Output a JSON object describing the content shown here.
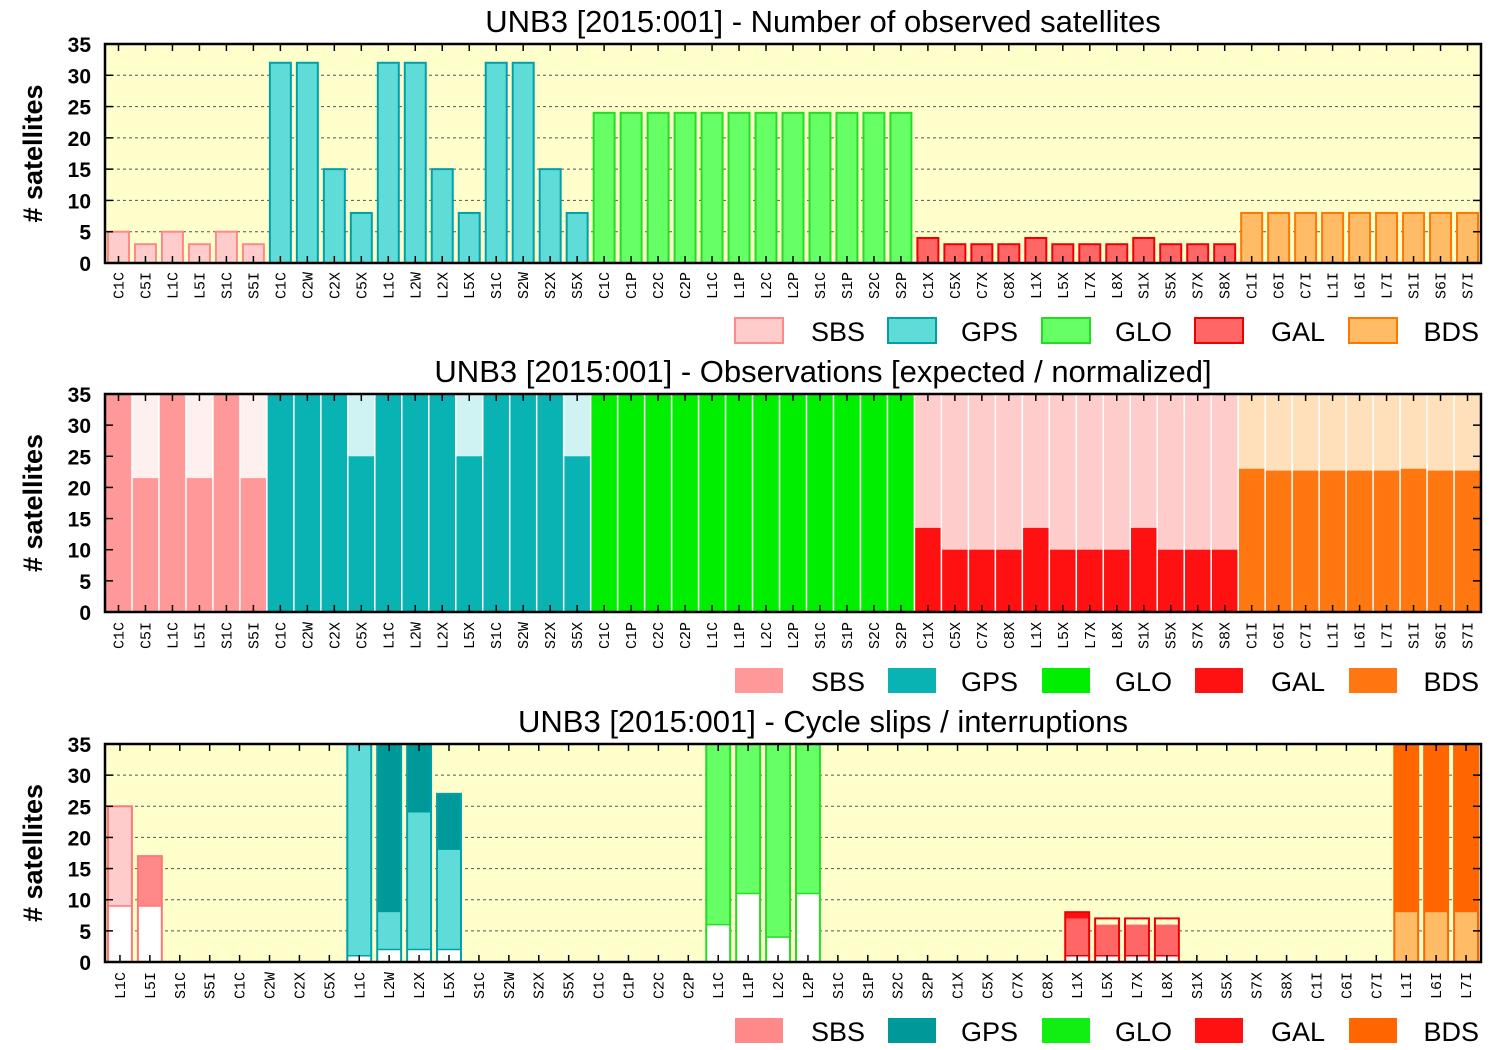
{
  "chart_data": [
    {
      "type": "bar",
      "title": "UNB3 [2015:001] - Number of observed satellites",
      "ylabel": "# satellites",
      "ylim": [
        0,
        35
      ],
      "yticks": [
        0,
        5,
        10,
        15,
        20,
        25,
        30,
        35
      ],
      "grid": true,
      "legend_placement": "bottom-right",
      "categories": [
        "C1C",
        "C5I",
        "L1C",
        "L5I",
        "S1C",
        "S5I",
        "C1C",
        "C2W",
        "C2X",
        "C5X",
        "L1C",
        "L2W",
        "L2X",
        "L5X",
        "S1C",
        "S2W",
        "S2X",
        "S5X",
        "C1C",
        "C1P",
        "C2C",
        "C2P",
        "L1C",
        "L1P",
        "L2C",
        "L2P",
        "S1C",
        "S1P",
        "S2C",
        "S2P",
        "C1X",
        "C5X",
        "C7X",
        "C8X",
        "L1X",
        "L5X",
        "L7X",
        "L8X",
        "S1X",
        "S5X",
        "S7X",
        "S8X",
        "C1I",
        "C6I",
        "C7I",
        "L1I",
        "L6I",
        "L7I",
        "S1I",
        "S6I",
        "S7I"
      ],
      "groups": [
        "SBS",
        "SBS",
        "SBS",
        "SBS",
        "SBS",
        "SBS",
        "GPS",
        "GPS",
        "GPS",
        "GPS",
        "GPS",
        "GPS",
        "GPS",
        "GPS",
        "GPS",
        "GPS",
        "GPS",
        "GPS",
        "GLO",
        "GLO",
        "GLO",
        "GLO",
        "GLO",
        "GLO",
        "GLO",
        "GLO",
        "GLO",
        "GLO",
        "GLO",
        "GLO",
        "GAL",
        "GAL",
        "GAL",
        "GAL",
        "GAL",
        "GAL",
        "GAL",
        "GAL",
        "GAL",
        "GAL",
        "GAL",
        "GAL",
        "BDS",
        "BDS",
        "BDS",
        "BDS",
        "BDS",
        "BDS",
        "BDS",
        "BDS",
        "BDS"
      ],
      "values": [
        5,
        3,
        5,
        3,
        5,
        3,
        32,
        32,
        15,
        8,
        32,
        32,
        15,
        8,
        32,
        32,
        15,
        8,
        24,
        24,
        24,
        24,
        24,
        24,
        24,
        24,
        24,
        24,
        24,
        24,
        4,
        3,
        3,
        3,
        4,
        3,
        3,
        3,
        4,
        3,
        3,
        3,
        8,
        8,
        8,
        8,
        8,
        8,
        8,
        8,
        8
      ],
      "series": [
        {
          "name": "SBS",
          "fill": "#ffcccc",
          "stroke": "#ff8888"
        },
        {
          "name": "GPS",
          "fill": "#5fdcd8",
          "stroke": "#00a0a8"
        },
        {
          "name": "GLO",
          "fill": "#66ff66",
          "stroke": "#22dd22"
        },
        {
          "name": "GAL",
          "fill": "#ff6666",
          "stroke": "#ee0000"
        },
        {
          "name": "BDS",
          "fill": "#ffbb66",
          "stroke": "#ff7700"
        }
      ]
    },
    {
      "type": "bar",
      "title": "UNB3 [2015:001] - Observations [expected / normalized]",
      "ylabel": "# satellites",
      "ylim": [
        0,
        35
      ],
      "yticks": [
        0,
        5,
        10,
        15,
        20,
        25,
        30,
        35
      ],
      "grid": false,
      "legend_placement": "bottom-right",
      "categories": [
        "C1C",
        "C5I",
        "L1C",
        "L5I",
        "S1C",
        "S5I",
        "C1C",
        "C2W",
        "C2X",
        "C5X",
        "L1C",
        "L2W",
        "L2X",
        "L5X",
        "S1C",
        "S2W",
        "S2X",
        "S5X",
        "C1C",
        "C1P",
        "C2C",
        "C2P",
        "L1C",
        "L1P",
        "L2C",
        "L2P",
        "S1C",
        "S1P",
        "S2C",
        "S2P",
        "C1X",
        "C5X",
        "C7X",
        "C8X",
        "L1X",
        "L5X",
        "L7X",
        "L8X",
        "S1X",
        "S5X",
        "S7X",
        "S8X",
        "C1I",
        "C6I",
        "C7I",
        "L1I",
        "L6I",
        "L7I",
        "S1I",
        "S6I",
        "S7I"
      ],
      "groups": [
        "SBS",
        "SBS",
        "SBS",
        "SBS",
        "SBS",
        "SBS",
        "GPS",
        "GPS",
        "GPS",
        "GPS",
        "GPS",
        "GPS",
        "GPS",
        "GPS",
        "GPS",
        "GPS",
        "GPS",
        "GPS",
        "GLO",
        "GLO",
        "GLO",
        "GLO",
        "GLO",
        "GLO",
        "GLO",
        "GLO",
        "GLO",
        "GLO",
        "GLO",
        "GLO",
        "GAL",
        "GAL",
        "GAL",
        "GAL",
        "GAL",
        "GAL",
        "GAL",
        "GAL",
        "GAL",
        "GAL",
        "GAL",
        "GAL",
        "BDS",
        "BDS",
        "BDS",
        "BDS",
        "BDS",
        "BDS",
        "BDS",
        "BDS",
        "BDS"
      ],
      "expected": [
        35,
        35,
        35,
        35,
        35,
        35,
        35,
        35,
        35,
        35,
        35,
        35,
        35,
        35,
        35,
        35,
        35,
        35,
        35,
        35,
        35,
        35,
        35,
        35,
        35,
        35,
        35,
        35,
        35,
        35,
        35,
        35,
        35,
        35,
        35,
        35,
        35,
        35,
        35,
        35,
        35,
        35,
        35,
        35,
        35,
        35,
        35,
        35,
        35,
        35,
        35
      ],
      "values": [
        35,
        21.5,
        35,
        21.5,
        35,
        21.5,
        35,
        35,
        35,
        25,
        35,
        35,
        35,
        25,
        35,
        35,
        35,
        25,
        35,
        35,
        35,
        35,
        35,
        35,
        35,
        35,
        35,
        35,
        35,
        35,
        13.5,
        10,
        10,
        10,
        13.5,
        10,
        10,
        10,
        13.5,
        10,
        10,
        10,
        23,
        22.7,
        22.7,
        22.7,
        22.7,
        22.7,
        23,
        22.7,
        22.7
      ],
      "series": [
        {
          "name": "SBS",
          "fill": "#ff9999",
          "expected_fill": "#fff0f0"
        },
        {
          "name": "GPS",
          "fill": "#0ab3b3",
          "expected_fill": "#cff3f3"
        },
        {
          "name": "GLO",
          "fill": "#00ee00",
          "expected_fill": "#ccffcc"
        },
        {
          "name": "GAL",
          "fill": "#ff1111",
          "expected_fill": "#ffcccc"
        },
        {
          "name": "BDS",
          "fill": "#ff7711",
          "expected_fill": "#ffe0bb"
        }
      ]
    },
    {
      "type": "bar",
      "title": "UNB3 [2015:001] - Cycle slips / interruptions",
      "ylabel": "# satellites",
      "ylim": [
        0,
        35
      ],
      "yticks": [
        0,
        5,
        10,
        15,
        20,
        25,
        30,
        35
      ],
      "grid": true,
      "legend_placement": "bottom-right",
      "categories": [
        "L1C",
        "L5I",
        "S1C",
        "S5I",
        "C1C",
        "C2W",
        "C2X",
        "C5X",
        "L1C",
        "L2W",
        "L2X",
        "L5X",
        "S1C",
        "S2W",
        "S2X",
        "S5X",
        "C1C",
        "C1P",
        "C2C",
        "C2P",
        "L1C",
        "L1P",
        "L2C",
        "L2P",
        "S1C",
        "S1P",
        "S2C",
        "S2P",
        "C1X",
        "C5X",
        "C7X",
        "C8X",
        "L1X",
        "L5X",
        "L7X",
        "L8X",
        "S1X",
        "S5X",
        "S7X",
        "S8X",
        "C1I",
        "C6I",
        "C7I",
        "L1I",
        "L6I",
        "L7I"
      ],
      "groups": [
        "SBS",
        "SBS",
        "SBS",
        "SBS",
        "GPS",
        "GPS",
        "GPS",
        "GPS",
        "GPS",
        "GPS",
        "GPS",
        "GPS",
        "GPS",
        "GPS",
        "GPS",
        "GPS",
        "GLO",
        "GLO",
        "GLO",
        "GLO",
        "GLO",
        "GLO",
        "GLO",
        "GLO",
        "GLO",
        "GLO",
        "GLO",
        "GLO",
        "GAL",
        "GAL",
        "GAL",
        "GAL",
        "GAL",
        "GAL",
        "GAL",
        "GAL",
        "GAL",
        "GAL",
        "GAL",
        "GAL",
        "BDS",
        "BDS",
        "BDS",
        "BDS",
        "BDS",
        "BDS"
      ],
      "total": [
        25,
        17,
        0,
        0,
        0,
        0,
        0,
        0,
        35,
        35,
        35,
        27,
        0,
        0,
        0,
        0,
        0,
        0,
        0,
        0,
        35,
        35,
        35,
        35,
        0,
        0,
        0,
        0,
        0,
        0,
        0,
        0,
        8,
        7,
        7,
        7,
        0,
        0,
        0,
        0,
        0,
        0,
        0,
        35,
        35,
        35
      ],
      "slips": [
        0,
        17,
        0,
        0,
        0,
        0,
        0,
        0,
        0,
        35,
        35,
        27,
        0,
        0,
        0,
        0,
        0,
        0,
        0,
        0,
        0,
        0,
        0,
        0,
        0,
        0,
        0,
        0,
        0,
        0,
        0,
        0,
        8,
        0,
        0,
        0,
        0,
        0,
        0,
        0,
        0,
        0,
        0,
        35,
        35,
        35
      ],
      "light": [
        25,
        9,
        0,
        0,
        0,
        0,
        0,
        0,
        35,
        8,
        24,
        18,
        0,
        0,
        0,
        0,
        0,
        0,
        0,
        0,
        35,
        35,
        35,
        35,
        0,
        0,
        0,
        0,
        0,
        0,
        0,
        0,
        7,
        6,
        6,
        6,
        0,
        0,
        0,
        0,
        0,
        0,
        0,
        8,
        8,
        8
      ],
      "interruptions": [
        9,
        9,
        0,
        0,
        0,
        0,
        0,
        0,
        1,
        2,
        2,
        2,
        0,
        0,
        0,
        0,
        0,
        0,
        0,
        0,
        6,
        11,
        4,
        11,
        0,
        0,
        0,
        0,
        0,
        0,
        0,
        0,
        1,
        1,
        1,
        1,
        0,
        0,
        0,
        0,
        0,
        0,
        0,
        0,
        0,
        0
      ],
      "series": [
        {
          "name": "SBS",
          "fill": "#ff8888",
          "light_fill": "#ffcccc",
          "stroke": "#ff7777"
        },
        {
          "name": "GPS",
          "fill": "#009999",
          "light_fill": "#5fdcd8",
          "stroke": "#00a0a8"
        },
        {
          "name": "GLO",
          "fill": "#11ee11",
          "light_fill": "#66ff66",
          "stroke": "#22dd22"
        },
        {
          "name": "GAL",
          "fill": "#ff1111",
          "light_fill": "#ff6666",
          "stroke": "#ee0000"
        },
        {
          "name": "BDS",
          "fill": "#ff6600",
          "light_fill": "#ffbb66",
          "stroke": "#ff6600"
        }
      ]
    }
  ]
}
